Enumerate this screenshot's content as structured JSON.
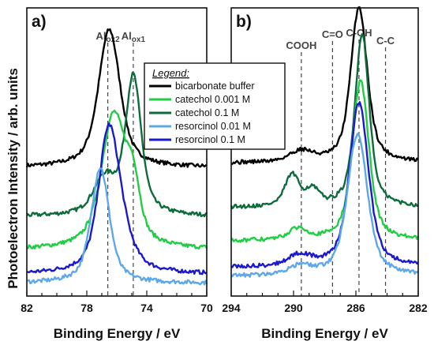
{
  "figure": {
    "y_axis_title": "Photoelectron Intensity / arb. units",
    "legend": {
      "title": "Legend:",
      "entries": [
        {
          "label": "bicarbonate buffer",
          "color": "#000000"
        },
        {
          "label": "catechol 0.001 M",
          "color": "#22cc44"
        },
        {
          "label": "catechol 0.1 M",
          "color": "#0d6b3c"
        },
        {
          "label": "resorcinol 0.01 M",
          "color": "#5fa8e8"
        },
        {
          "label": "resorcinol 0.1 M",
          "color": "#1a1acc"
        }
      ]
    }
  },
  "chart_data": [
    {
      "type": "line",
      "panel_label": "a)",
      "xlabel": "Binding Energy / eV",
      "ylabel": "Photoelectron Intensity / arb. units",
      "xlim": [
        82,
        70
      ],
      "x_ticks": [
        82,
        78,
        74,
        70
      ],
      "reference_lines": [
        {
          "x": 76.6,
          "label_main": "Al",
          "label_sub": "ox2"
        },
        {
          "x": 74.9,
          "label_main": "Al",
          "label_sub": "ox1"
        }
      ],
      "series": [
        {
          "name": "bicarbonate buffer",
          "color": "#000000",
          "baseline": 0.42,
          "peaks": [
            {
              "x": 76.5,
              "h": 0.62,
              "w": 0.95
            }
          ]
        },
        {
          "name": "catechol 0.1 M",
          "color": "#0d6b3c",
          "baseline": 0.2,
          "peaks": [
            {
              "x": 74.9,
              "h": 0.62,
              "w": 0.7
            },
            {
              "x": 76.8,
              "h": 0.16,
              "w": 1.0
            }
          ]
        },
        {
          "name": "catechol 0.001 M",
          "color": "#22cc44",
          "baseline": 0.05,
          "peaks": [
            {
              "x": 76.2,
              "h": 0.6,
              "w": 1.1
            },
            {
              "x": 74.9,
              "h": 0.22,
              "w": 0.6
            }
          ]
        },
        {
          "name": "resorcinol 0.1 M",
          "color": "#1a1acc",
          "baseline": -0.06,
          "peaks": [
            {
              "x": 76.6,
              "h": 0.5,
              "w": 0.85
            },
            {
              "x": 76.0,
              "h": 0.22,
              "w": 1.1
            }
          ]
        },
        {
          "name": "resorcinol 0.01 M",
          "color": "#5fa8e8",
          "baseline": -0.1,
          "peaks": [
            {
              "x": 77.1,
              "h": 0.52,
              "w": 0.8
            }
          ]
        }
      ]
    },
    {
      "type": "line",
      "panel_label": "b)",
      "xlabel": "Binding Energy / eV",
      "ylabel": "",
      "xlim": [
        294,
        282
      ],
      "x_ticks": [
        294,
        290,
        286,
        282
      ],
      "reference_lines": [
        {
          "x": 289.5,
          "label_main": "COOH"
        },
        {
          "x": 287.5,
          "label_main": "C=O"
        },
        {
          "x": 285.8,
          "label_main": "C-OH"
        },
        {
          "x": 284.1,
          "label_main": "C-C"
        }
      ],
      "series": [
        {
          "name": "bicarbonate buffer",
          "color": "#000000",
          "baseline": 0.44,
          "peaks": [
            {
              "x": 285.8,
              "h": 0.7,
              "w": 0.7
            },
            {
              "x": 289.5,
              "h": 0.05,
              "w": 1.0
            }
          ]
        },
        {
          "name": "catechol 0.1 M",
          "color": "#0d6b3c",
          "baseline": 0.24,
          "peaks": [
            {
              "x": 285.6,
              "h": 0.78,
              "w": 0.6
            },
            {
              "x": 290.1,
              "h": 0.14,
              "w": 0.6
            },
            {
              "x": 288.8,
              "h": 0.07,
              "w": 0.6
            }
          ]
        },
        {
          "name": "catechol 0.001 M",
          "color": "#22cc44",
          "baseline": 0.09,
          "peaks": [
            {
              "x": 285.7,
              "h": 0.72,
              "w": 0.7
            },
            {
              "x": 289.7,
              "h": 0.05,
              "w": 0.8
            }
          ]
        },
        {
          "name": "resorcinol 0.1 M",
          "color": "#1a1acc",
          "baseline": -0.03,
          "peaks": [
            {
              "x": 285.8,
              "h": 0.74,
              "w": 0.8
            },
            {
              "x": 289.6,
              "h": 0.05,
              "w": 1.0
            }
          ]
        },
        {
          "name": "resorcinol 0.01 M",
          "color": "#5fa8e8",
          "baseline": -0.07,
          "peaks": [
            {
              "x": 285.9,
              "h": 0.64,
              "w": 0.85
            },
            {
              "x": 289.6,
              "h": 0.04,
              "w": 1.0
            }
          ]
        }
      ]
    }
  ]
}
